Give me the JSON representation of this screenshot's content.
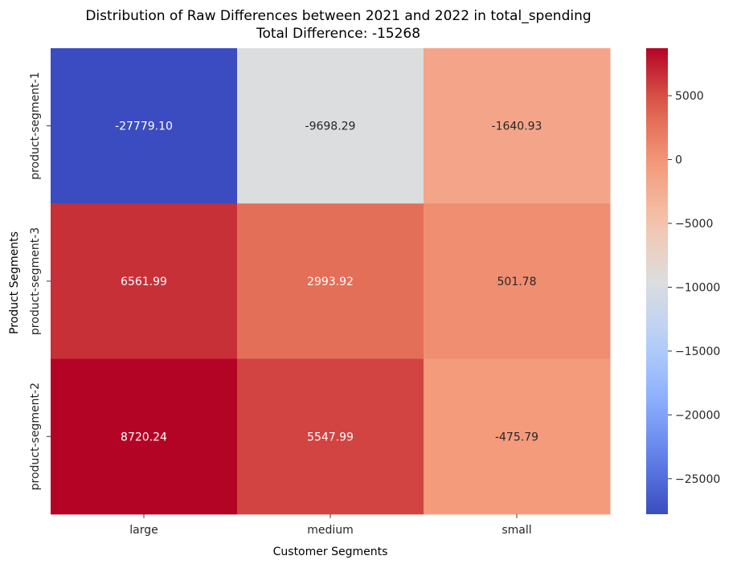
{
  "chart_data": {
    "type": "heatmap",
    "title": "Distribution of Raw Differences between 2021 and 2022 in total_spending",
    "subtitle": "Total Difference: -15268",
    "xlabel": "Customer Segments",
    "ylabel": "Product Segments",
    "columns": [
      "large",
      "medium",
      "small"
    ],
    "rows": [
      "product-segment-1",
      "product-segment-3",
      "product-segment-2"
    ],
    "values": [
      [
        -27779.1,
        -9698.29,
        -1640.93
      ],
      [
        6561.99,
        2993.92,
        501.78
      ],
      [
        8720.24,
        5547.99,
        -475.79
      ]
    ],
    "cell_labels": [
      [
        "-27779.10",
        "-9698.29",
        "-1640.93"
      ],
      [
        "6561.99",
        "2993.92",
        "501.78"
      ],
      [
        "8720.24",
        "5547.99",
        "-475.79"
      ]
    ],
    "colormap": "coolwarm",
    "color_range": [
      -27779.1,
      8720.24
    ],
    "colorbar": {
      "ticks": [
        5000,
        0,
        -5000,
        -10000,
        -15000,
        -20000,
        -25000
      ],
      "tick_labels": [
        "5000",
        "0",
        "−5000",
        "−10000",
        "−15000",
        "−20000",
        "−25000"
      ]
    },
    "grid": false
  }
}
